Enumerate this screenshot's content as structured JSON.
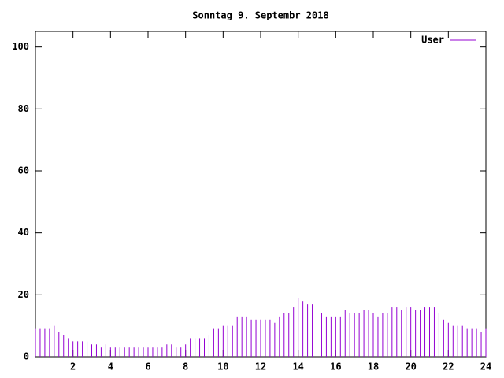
{
  "chart_data": {
    "type": "impulse",
    "title": "Sonntag 9. Septembr 2018",
    "series": [
      {
        "name": "User",
        "color": "#9400d3",
        "x": [
          0,
          0.25,
          0.5,
          0.75,
          1,
          1.25,
          1.5,
          1.75,
          2,
          2.25,
          2.5,
          2.75,
          3,
          3.25,
          3.5,
          3.75,
          4,
          4.25,
          4.5,
          4.75,
          5,
          5.25,
          5.5,
          5.75,
          6,
          6.25,
          6.5,
          6.75,
          7,
          7.25,
          7.5,
          7.75,
          8,
          8.25,
          8.5,
          8.75,
          9,
          9.25,
          9.5,
          9.75,
          10,
          10.25,
          10.5,
          10.75,
          11,
          11.25,
          11.5,
          11.75,
          12,
          12.25,
          12.5,
          12.75,
          13,
          13.25,
          13.5,
          13.75,
          14,
          14.25,
          14.5,
          14.75,
          15,
          15.25,
          15.5,
          15.75,
          16,
          16.25,
          16.5,
          16.75,
          17,
          17.25,
          17.5,
          17.75,
          18,
          18.25,
          18.5,
          18.75,
          19,
          19.25,
          19.5,
          19.75,
          20,
          20.25,
          20.5,
          20.75,
          21,
          21.25,
          21.5,
          21.75,
          22,
          22.25,
          22.5,
          22.75,
          23,
          23.25,
          23.5,
          23.75,
          24
        ],
        "values": [
          9,
          9,
          9,
          9,
          10,
          8,
          7,
          6,
          5,
          5,
          5,
          5,
          4,
          4,
          3,
          4,
          3,
          3,
          3,
          3,
          3,
          3,
          3,
          3,
          3,
          3,
          3,
          3,
          4,
          4,
          3,
          3,
          4,
          6,
          6,
          6,
          6,
          7,
          9,
          9,
          10,
          10,
          10,
          13,
          13,
          13,
          12,
          12,
          12,
          12,
          12,
          11,
          13,
          14,
          14,
          16,
          19,
          18,
          17,
          17,
          15,
          14,
          13,
          13,
          13,
          13,
          15,
          14,
          14,
          14,
          15,
          15,
          14,
          13,
          14,
          14,
          16,
          16,
          15,
          16,
          16,
          15,
          15,
          16,
          16,
          16,
          14,
          12,
          11,
          10,
          10,
          10,
          9,
          9,
          9,
          8,
          9
        ]
      }
    ],
    "xlim": [
      0,
      24
    ],
    "xticks": [
      2,
      4,
      6,
      8,
      10,
      12,
      14,
      16,
      18,
      20,
      22,
      24
    ],
    "ylim": [
      0,
      105
    ],
    "yticks": [
      0,
      20,
      40,
      60,
      80,
      100
    ],
    "legend": "upper right"
  }
}
